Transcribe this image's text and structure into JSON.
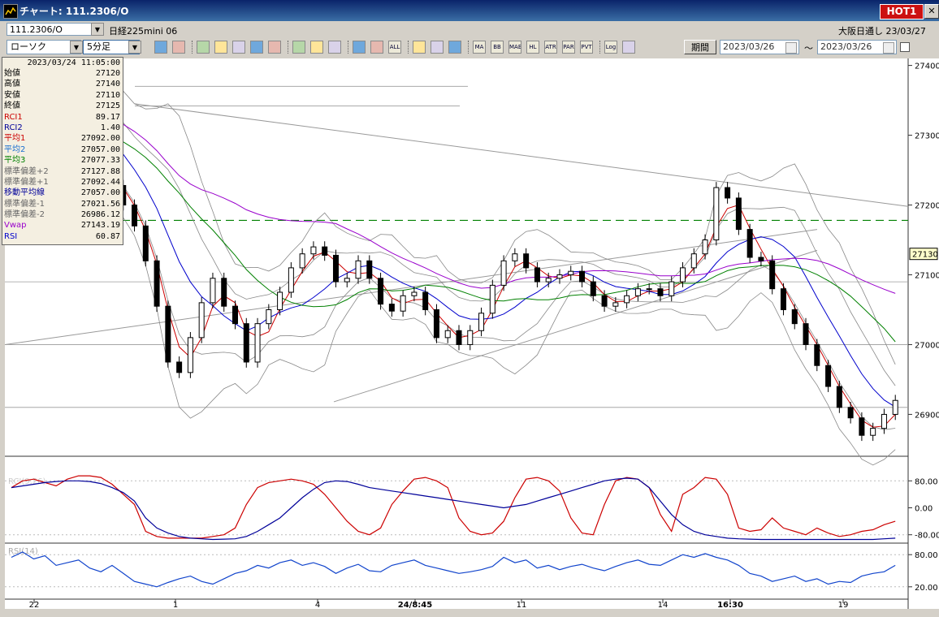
{
  "window": {
    "title": "チャート: 111.2306/O",
    "hot_label": "HOT1"
  },
  "symbol_bar": {
    "symbol_code": "111.2306/O",
    "symbol_name": "日経225mini 06",
    "market_label": "大阪日通し",
    "market_date": "23/03/27"
  },
  "toolbar": {
    "chart_type": "ローソク",
    "interval": "5分足",
    "buttons": [
      "zoom",
      "grid",
      "draw-1",
      "draw-2",
      "draw-3",
      "draw-4",
      "draw-5",
      "pen",
      "cursor",
      "undo",
      "bar-a",
      "bar-b",
      "ALL",
      "settings",
      "wrench",
      "palette",
      "MA",
      "BB",
      "MAE",
      "HL",
      "ATR",
      "PAR",
      "PVT",
      "Log",
      "export"
    ],
    "period_label": "期間",
    "date_from": "2023/03/26",
    "date_sep": "〜",
    "date_to": "2023/03/26"
  },
  "info": {
    "datetime": "2023/03/24  11:05:00",
    "rows": [
      {
        "label": "始値",
        "value": "27120",
        "color": "#000000"
      },
      {
        "label": "高値",
        "value": "27140",
        "color": "#000000"
      },
      {
        "label": "安値",
        "value": "27110",
        "color": "#000000"
      },
      {
        "label": "終値",
        "value": "27125",
        "color": "#000000"
      },
      {
        "label": "RCI1",
        "value": "89.17",
        "color": "#cc0000"
      },
      {
        "label": "RCI2",
        "value": "1.40",
        "color": "#000099"
      },
      {
        "label": "平均1",
        "value": "27092.00",
        "color": "#cc0000"
      },
      {
        "label": "平均2",
        "value": "27057.00",
        "color": "#1a6fd0"
      },
      {
        "label": "平均3",
        "value": "27077.33",
        "color": "#008000"
      },
      {
        "label": "標準偏差+2",
        "value": "27127.88",
        "color": "#666666"
      },
      {
        "label": "標準偏差+1",
        "value": "27092.44",
        "color": "#666666"
      },
      {
        "label": "移動平均線",
        "value": "27057.00",
        "color": "#000099"
      },
      {
        "label": "標準偏差-1",
        "value": "27021.56",
        "color": "#666666"
      },
      {
        "label": "標準偏差-2",
        "value": "26986.12",
        "color": "#666666"
      },
      {
        "label": "Vwap",
        "value": "27143.19",
        "color": "#9900cc"
      },
      {
        "label": "RSI",
        "value": "60.87",
        "color": "#0000cc"
      }
    ]
  },
  "chart_data": [
    {
      "type": "candlestick",
      "y_ticks": [
        "27400",
        "27300",
        "27200",
        "27100",
        "27000",
        "26900"
      ],
      "ylim": [
        26840,
        27410
      ],
      "last_price": "27130",
      "x_labels": [
        "22",
        "1",
        "4",
        "24/8:45",
        "11",
        "14",
        "16:30",
        "19"
      ],
      "close_series": [
        27325,
        27338,
        27352,
        27345,
        27320,
        27300,
        27280,
        27262,
        27245,
        27228,
        27200,
        27170,
        27120,
        27055,
        26975,
        26960,
        27010,
        27060,
        27095,
        27055,
        27030,
        26975,
        27030,
        27050,
        27075,
        27110,
        27130,
        27140,
        27128,
        27090,
        27095,
        27120,
        27095,
        27058,
        27048,
        27070,
        27075,
        27050,
        27010,
        27020,
        27000,
        27020,
        27045,
        27085,
        27120,
        27130,
        27110,
        27090,
        27095,
        27100,
        27105,
        27090,
        27070,
        27055,
        27060,
        27070,
        27080,
        27080,
        27070,
        27090,
        27110,
        27130,
        27150,
        27225,
        27210,
        27165,
        27125,
        27120,
        27080,
        27050,
        27030,
        27000,
        26970,
        26940,
        26910,
        26895,
        26870,
        26880,
        26900,
        26920
      ]
    },
    {
      "type": "line",
      "title": "RCI(9,26)",
      "y_ticks": [
        "80.00",
        "0.00",
        "-80.00"
      ],
      "ylim": [
        -100,
        100
      ],
      "series": [
        {
          "values": [
            60,
            80,
            85,
            75,
            65,
            85,
            95,
            95,
            90,
            70,
            40,
            10,
            -70,
            -85,
            -90,
            -90,
            -90,
            -90,
            -85,
            -80,
            -60,
            10,
            60,
            75,
            80,
            85,
            80,
            70,
            40,
            0,
            -40,
            -70,
            -80,
            -60,
            10,
            50,
            85,
            90,
            80,
            60,
            -30,
            -70,
            -80,
            -75,
            -40,
            30,
            85,
            90,
            80,
            50,
            -30,
            -75,
            -80,
            10,
            80,
            90,
            85,
            60,
            -20,
            -70,
            40,
            60,
            90,
            85,
            40,
            -60,
            -70,
            -65,
            -30,
            -60,
            -70,
            -80,
            -60,
            -75,
            -85,
            -80,
            -70,
            -65,
            -50,
            -40
          ]
        },
        {
          "values": [
            60,
            65,
            70,
            75,
            78,
            80,
            80,
            78,
            72,
            60,
            45,
            20,
            -30,
            -60,
            -75,
            -85,
            -90,
            -92,
            -94,
            -93,
            -92,
            -85,
            -70,
            -50,
            -30,
            0,
            30,
            55,
            75,
            80,
            78,
            70,
            60,
            55,
            50,
            45,
            40,
            35,
            30,
            25,
            20,
            15,
            10,
            5,
            0,
            5,
            10,
            20,
            30,
            40,
            50,
            60,
            70,
            80,
            85,
            88,
            85,
            60,
            20,
            -20,
            -50,
            -70,
            -80,
            -85,
            -90,
            -92,
            -93,
            -94,
            -94,
            -94,
            -94,
            -94,
            -94,
            -94,
            -94,
            -94,
            -94,
            -94,
            -92,
            -90
          ]
        }
      ]
    },
    {
      "type": "line",
      "title": "RSI(14)",
      "y_ticks": [
        "80.00",
        "20.00"
      ],
      "ylim": [
        0,
        100
      ],
      "series": [
        {
          "values": [
            75,
            85,
            72,
            78,
            60,
            65,
            70,
            55,
            48,
            60,
            45,
            30,
            25,
            20,
            28,
            35,
            40,
            30,
            25,
            35,
            45,
            50,
            60,
            55,
            65,
            70,
            60,
            65,
            58,
            45,
            55,
            62,
            50,
            48,
            60,
            65,
            70,
            60,
            55,
            50,
            45,
            48,
            52,
            58,
            75,
            65,
            70,
            55,
            60,
            52,
            58,
            62,
            55,
            50,
            58,
            65,
            70,
            62,
            60,
            70,
            80,
            75,
            82,
            75,
            70,
            60,
            45,
            40,
            30,
            35,
            40,
            30,
            35,
            25,
            30,
            28,
            40,
            45,
            48,
            60
          ]
        }
      ]
    }
  ]
}
